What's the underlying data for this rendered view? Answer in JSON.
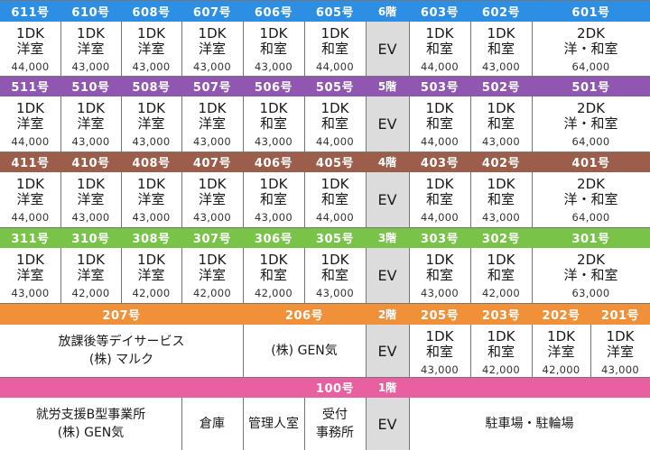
{
  "colors": {
    "floor6": "#2d8fe3",
    "floor5": "#8f57b0",
    "floor4": "#9c5e4a",
    "floor3": "#79c348",
    "floor2": "#f0913a",
    "floor1": "#e8609f",
    "ev": "#dcdcdc"
  },
  "ev_label": "EV",
  "floors": [
    {
      "label": "6階",
      "color_key": "floor6",
      "units": [
        {
          "no": "611号",
          "type": "1DK",
          "layout": "洋室",
          "price": "44,000"
        },
        {
          "no": "610号",
          "type": "1DK",
          "layout": "洋室",
          "price": "43,000"
        },
        {
          "no": "608号",
          "type": "1DK",
          "layout": "洋室",
          "price": "43,000"
        },
        {
          "no": "607号",
          "type": "1DK",
          "layout": "洋室",
          "price": "43,000"
        },
        {
          "no": "606号",
          "type": "1DK",
          "layout": "和室",
          "price": "43,000"
        },
        {
          "no": "605号",
          "type": "1DK",
          "layout": "和室",
          "price": "44,000"
        },
        {
          "no": "603号",
          "type": "1DK",
          "layout": "和室",
          "price": "44,000"
        },
        {
          "no": "602号",
          "type": "1DK",
          "layout": "和室",
          "price": "43,000"
        },
        {
          "no": "601号",
          "type": "2DK",
          "layout": "洋・和室",
          "price": "64,000"
        }
      ]
    },
    {
      "label": "5階",
      "color_key": "floor5",
      "units": [
        {
          "no": "511号",
          "type": "1DK",
          "layout": "洋室",
          "price": "44,000"
        },
        {
          "no": "510号",
          "type": "1DK",
          "layout": "洋室",
          "price": "43,000"
        },
        {
          "no": "508号",
          "type": "1DK",
          "layout": "洋室",
          "price": "43,000"
        },
        {
          "no": "507号",
          "type": "1DK",
          "layout": "洋室",
          "price": "43,000"
        },
        {
          "no": "506号",
          "type": "1DK",
          "layout": "和室",
          "price": "43,000"
        },
        {
          "no": "505号",
          "type": "1DK",
          "layout": "和室",
          "price": "44,000"
        },
        {
          "no": "503号",
          "type": "1DK",
          "layout": "和室",
          "price": "44,000"
        },
        {
          "no": "502号",
          "type": "1DK",
          "layout": "和室",
          "price": "43,000"
        },
        {
          "no": "501号",
          "type": "2DK",
          "layout": "洋・和室",
          "price": "64,000"
        }
      ]
    },
    {
      "label": "4階",
      "color_key": "floor4",
      "units": [
        {
          "no": "411号",
          "type": "1DK",
          "layout": "洋室",
          "price": "44,000"
        },
        {
          "no": "410号",
          "type": "1DK",
          "layout": "洋室",
          "price": "43,000"
        },
        {
          "no": "408号",
          "type": "1DK",
          "layout": "洋室",
          "price": "43,000"
        },
        {
          "no": "407号",
          "type": "1DK",
          "layout": "洋室",
          "price": "43,000"
        },
        {
          "no": "406号",
          "type": "1DK",
          "layout": "和室",
          "price": "43,000"
        },
        {
          "no": "405号",
          "type": "1DK",
          "layout": "和室",
          "price": "44,000"
        },
        {
          "no": "403号",
          "type": "1DK",
          "layout": "和室",
          "price": "44,000"
        },
        {
          "no": "402号",
          "type": "1DK",
          "layout": "和室",
          "price": "43,000"
        },
        {
          "no": "401号",
          "type": "2DK",
          "layout": "洋・和室",
          "price": "64,000"
        }
      ]
    },
    {
      "label": "3階",
      "color_key": "floor3",
      "units": [
        {
          "no": "311号",
          "type": "1DK",
          "layout": "洋室",
          "price": "43,000"
        },
        {
          "no": "310号",
          "type": "1DK",
          "layout": "洋室",
          "price": "42,000"
        },
        {
          "no": "308号",
          "type": "1DK",
          "layout": "洋室",
          "price": "42,000"
        },
        {
          "no": "307号",
          "type": "1DK",
          "layout": "洋室",
          "price": "42,000"
        },
        {
          "no": "306号",
          "type": "1DK",
          "layout": "和室",
          "price": "42,000"
        },
        {
          "no": "305号",
          "type": "1DK",
          "layout": "和室",
          "price": "43,000"
        },
        {
          "no": "303号",
          "type": "1DK",
          "layout": "和室",
          "price": "43,000"
        },
        {
          "no": "302号",
          "type": "1DK",
          "layout": "和室",
          "price": "42,000"
        },
        {
          "no": "301号",
          "type": "2DK",
          "layout": "洋・和室",
          "price": "63,000"
        }
      ]
    }
  ],
  "floor2": {
    "label": "2階",
    "color_key": "floor2",
    "unit207": {
      "no": "207号",
      "name_line1": "放課後等デイサービス",
      "name_line2": "(株) マルク"
    },
    "unit206": {
      "no": "206号",
      "name": "(株) GEN気"
    },
    "units": [
      {
        "no": "205号",
        "type": "1DK",
        "layout": "和室",
        "price": "43,000"
      },
      {
        "no": "203号",
        "type": "1DK",
        "layout": "和室",
        "price": "42,000"
      },
      {
        "no": "202号",
        "type": "1DK",
        "layout": "洋室",
        "price": "42,000"
      },
      {
        "no": "201号",
        "type": "1DK",
        "layout": "洋室",
        "price": "43,000"
      }
    ]
  },
  "floor1": {
    "label": "1階",
    "color_key": "floor1",
    "unit100_no": "100号",
    "office_line1": "就労支援B型事業所",
    "office_line2": "(株) GEN気",
    "storage": "倉庫",
    "manager": "管理人室",
    "reception_line1": "受付",
    "reception_line2": "事務所",
    "parking": "駐車場・駐輪場"
  }
}
